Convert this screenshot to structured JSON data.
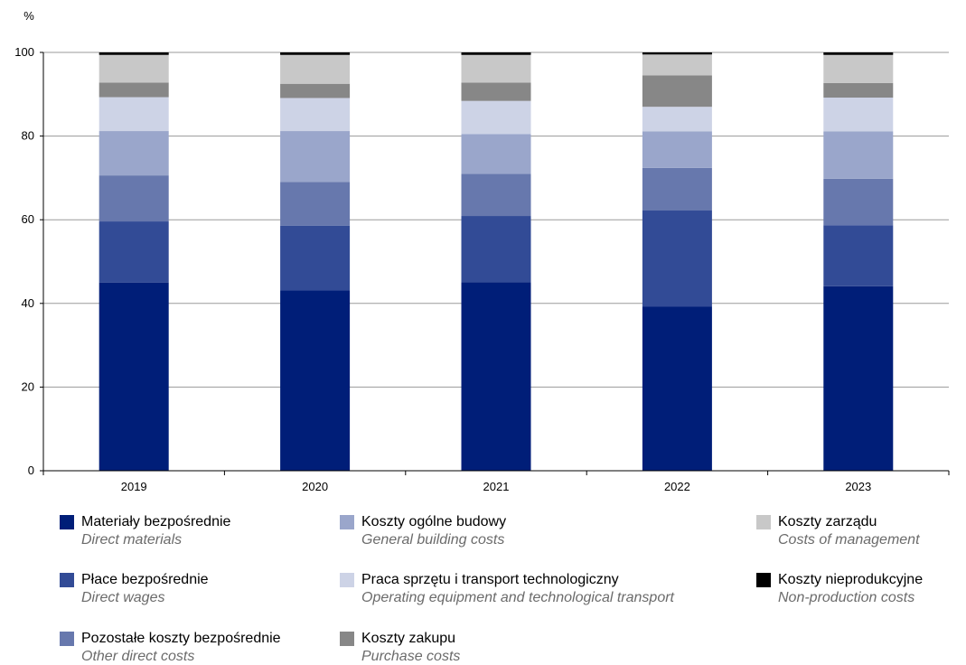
{
  "chart_data": {
    "type": "bar",
    "stacked": true,
    "unit": "%",
    "categories": [
      "2019",
      "2020",
      "2021",
      "2022",
      "2023"
    ],
    "ylim": [
      0,
      100
    ],
    "yticks": [
      0,
      20,
      40,
      60,
      80,
      100
    ],
    "grid": true,
    "legend_position": "bottom",
    "series": [
      {
        "name": "Materiały bezpośrednie",
        "name_en": "Direct materials",
        "color": "#001e78",
        "values": [
          45.0,
          43.1,
          45.1,
          39.2,
          44.1
        ]
      },
      {
        "name": "Płace bezpośrednie",
        "name_en": "Direct wages",
        "color": "#324b96",
        "values": [
          14.6,
          15.5,
          15.8,
          23.0,
          14.6
        ]
      },
      {
        "name": "Pozostałe koszty bezpośrednie",
        "name_en": "Other direct costs",
        "color": "#6778ad",
        "values": [
          11.0,
          10.4,
          10.1,
          10.2,
          11.1
        ]
      },
      {
        "name": "Koszty ogólne budowy",
        "name_en": "General building costs",
        "color": "#9aa6cb",
        "values": [
          10.6,
          12.2,
          9.5,
          8.7,
          11.3
        ]
      },
      {
        "name": "Praca sprzętu i transport technologiczny",
        "name_en": "Operating equipment and technological transport",
        "color": "#cdd3e6",
        "values": [
          8.1,
          7.9,
          7.9,
          5.9,
          8.1
        ]
      },
      {
        "name": "Koszty zakupu",
        "name_en": "Purchase costs",
        "color": "#878787",
        "values": [
          3.5,
          3.4,
          4.4,
          7.5,
          3.5
        ]
      },
      {
        "name": "Koszty zarządu",
        "name_en": "Costs of management",
        "color": "#c8c8c8",
        "values": [
          6.6,
          6.9,
          6.6,
          5.0,
          6.7
        ]
      },
      {
        "name": "Koszty nieprodukcyjne",
        "name_en": "Non-production costs",
        "color": "#000000",
        "values": [
          0.6,
          0.6,
          0.6,
          0.5,
          0.6
        ]
      }
    ]
  }
}
